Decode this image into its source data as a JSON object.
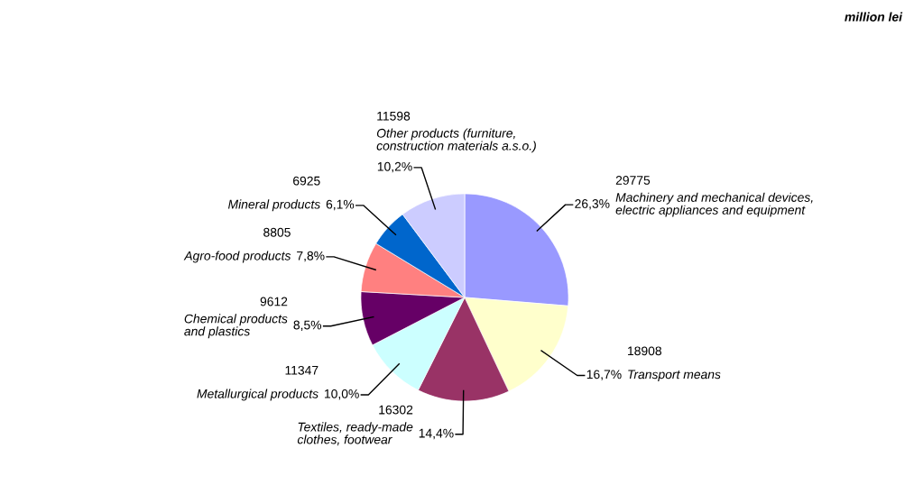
{
  "chart_data": {
    "type": "pie",
    "categories": [
      "Machinery and mechanical devices,\nelectric appliances and equipment",
      "Transport means",
      "Textiles, ready-made\nclothes, footwear",
      "Metallurgical products",
      "Chemical products\nand plastics",
      "Agro-food products",
      "Mineral products",
      "Other products (furniture,\nconstruction materials a.s.o.)"
    ],
    "values": [
      26.3,
      16.7,
      14.4,
      10.0,
      8.5,
      7.8,
      6.1,
      10.2
    ],
    "value_labels": [
      "26,3%",
      "16,7%",
      "14,4%",
      "10,0%",
      "8,5%",
      "7,8%",
      "6,1%",
      "10,2%"
    ],
    "colors": [
      "#9999ff",
      "#ffffcc",
      "#993366",
      "#ccffff",
      "#660066",
      "#ff8080",
      "#0066cc",
      "#ccccff"
    ],
    "annotations": [
      "million lei",
      "29775",
      "18908",
      "16302",
      "11347",
      "9612",
      "8805",
      "6925",
      "11598"
    ],
    "legend": false
  }
}
